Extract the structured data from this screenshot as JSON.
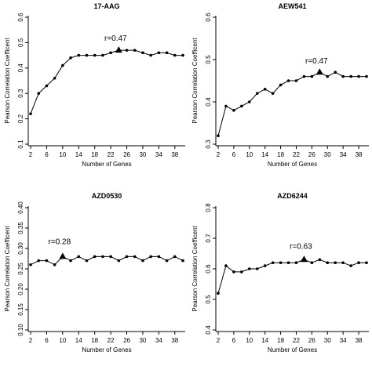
{
  "chart_data": [
    {
      "type": "line",
      "title": "17-AAG",
      "xlabel": "Number of Genes",
      "ylabel": "Pearson Correlation Coefficent",
      "x": [
        2,
        4,
        6,
        8,
        10,
        12,
        14,
        16,
        18,
        20,
        22,
        24,
        26,
        28,
        30,
        32,
        34,
        36,
        38,
        40
      ],
      "values": [
        0.22,
        0.3,
        0.33,
        0.36,
        0.41,
        0.44,
        0.45,
        0.45,
        0.45,
        0.45,
        0.46,
        0.47,
        0.47,
        0.47,
        0.46,
        0.45,
        0.46,
        0.46,
        0.45,
        0.45
      ],
      "xticks": [
        "2",
        "6",
        "10",
        "14",
        "18",
        "22",
        "26",
        "30",
        "34",
        "38"
      ],
      "yticks": [
        "0.1",
        "0.2",
        "0.3",
        "0.4",
        "0.5",
        "0.6"
      ],
      "xlim": [
        2,
        40
      ],
      "ylim": [
        0.1,
        0.6
      ],
      "peak_index": 11,
      "annotation": "r=0.47"
    },
    {
      "type": "line",
      "title": "AEW541",
      "xlabel": "Number of Genes",
      "ylabel": "Pearson Correlation Coefficent",
      "x": [
        2,
        4,
        6,
        8,
        10,
        12,
        14,
        16,
        18,
        20,
        22,
        24,
        26,
        28,
        30,
        32,
        34,
        36,
        38,
        40
      ],
      "values": [
        0.32,
        0.39,
        0.38,
        0.39,
        0.4,
        0.42,
        0.43,
        0.42,
        0.44,
        0.45,
        0.45,
        0.46,
        0.46,
        0.47,
        0.46,
        0.47,
        0.46,
        0.46,
        0.46,
        0.46
      ],
      "xticks": [
        "2",
        "6",
        "10",
        "14",
        "18",
        "22",
        "26",
        "30",
        "34",
        "38"
      ],
      "yticks": [
        "0.3",
        "0.4",
        "0.5",
        "0.6"
      ],
      "xlim": [
        2,
        40
      ],
      "ylim": [
        0.3,
        0.6
      ],
      "peak_index": 13,
      "annotation": "r=0.47"
    },
    {
      "type": "line",
      "title": "AZD0530",
      "xlabel": "Number of Genes",
      "ylabel": "Pearson Correlation Coefficent",
      "x": [
        2,
        4,
        6,
        8,
        10,
        12,
        14,
        16,
        18,
        20,
        22,
        24,
        26,
        28,
        30,
        32,
        34,
        36,
        38,
        40
      ],
      "values": [
        0.26,
        0.27,
        0.27,
        0.26,
        0.28,
        0.27,
        0.28,
        0.27,
        0.28,
        0.28,
        0.28,
        0.27,
        0.28,
        0.28,
        0.27,
        0.28,
        0.28,
        0.27,
        0.28,
        0.27
      ],
      "xticks": [
        "2",
        "6",
        "10",
        "14",
        "18",
        "22",
        "26",
        "30",
        "34",
        "38"
      ],
      "yticks": [
        "0.10",
        "0.15",
        "0.20",
        "0.25",
        "0.30",
        "0.35",
        "0.40"
      ],
      "xlim": [
        2,
        40
      ],
      "ylim": [
        0.1,
        0.4
      ],
      "peak_index": 4,
      "annotation": "r=0.28"
    },
    {
      "type": "line",
      "title": "AZD6244",
      "xlabel": "Number of Genes",
      "ylabel": "Pearson Correlation Coefficent",
      "x": [
        2,
        4,
        6,
        8,
        10,
        12,
        14,
        16,
        18,
        20,
        22,
        24,
        26,
        28,
        30,
        32,
        34,
        36,
        38,
        40
      ],
      "values": [
        0.52,
        0.61,
        0.59,
        0.59,
        0.6,
        0.6,
        0.61,
        0.62,
        0.62,
        0.62,
        0.62,
        0.63,
        0.62,
        0.63,
        0.62,
        0.62,
        0.62,
        0.61,
        0.62,
        0.62
      ],
      "xticks": [
        "2",
        "6",
        "10",
        "14",
        "18",
        "22",
        "26",
        "30",
        "34",
        "38"
      ],
      "yticks": [
        "0.4",
        "0.5",
        "0.6",
        "0.7",
        "0.8"
      ],
      "xlim": [
        2,
        40
      ],
      "ylim": [
        0.4,
        0.8
      ],
      "peak_index": 11,
      "annotation": "r=0.63"
    }
  ]
}
